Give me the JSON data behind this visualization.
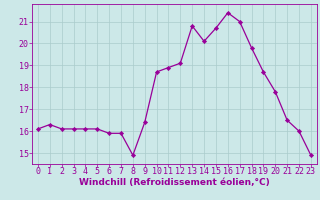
{
  "x": [
    0,
    1,
    2,
    3,
    4,
    5,
    6,
    7,
    8,
    9,
    10,
    11,
    12,
    13,
    14,
    15,
    16,
    17,
    18,
    19,
    20,
    21,
    22,
    23
  ],
  "y": [
    16.1,
    16.3,
    16.1,
    16.1,
    16.1,
    16.1,
    15.9,
    15.9,
    14.9,
    16.4,
    18.7,
    18.9,
    19.1,
    20.8,
    20.1,
    20.7,
    21.4,
    21.0,
    19.8,
    18.7,
    17.8,
    16.5,
    16.0,
    14.9
  ],
  "line_color": "#990099",
  "marker": "D",
  "marker_size": 2.2,
  "bg_color": "#cce8e8",
  "grid_color": "#aacccc",
  "xlabel": "Windchill (Refroidissement éolien,°C)",
  "ylim": [
    14.5,
    21.8
  ],
  "yticks": [
    15,
    16,
    17,
    18,
    19,
    20,
    21
  ],
  "xlim": [
    -0.5,
    23.5
  ],
  "xticks": [
    0,
    1,
    2,
    3,
    4,
    5,
    6,
    7,
    8,
    9,
    10,
    11,
    12,
    13,
    14,
    15,
    16,
    17,
    18,
    19,
    20,
    21,
    22,
    23
  ],
  "axis_color": "#990099",
  "tick_color": "#990099",
  "label_fontsize": 6.5,
  "tick_fontsize": 6.0
}
